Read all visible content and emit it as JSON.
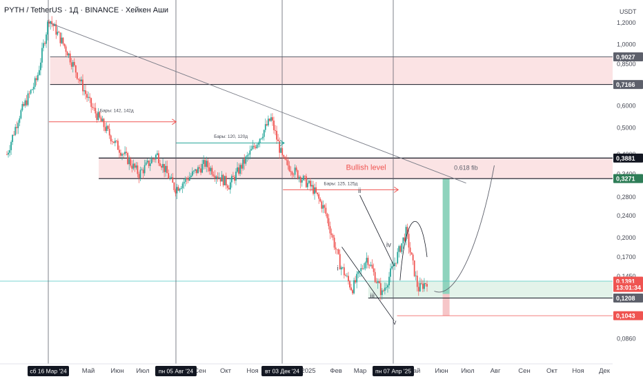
{
  "header": {
    "title": "PYTH / TetherUS · 1Д · BINANCE · Хейкен Аши"
  },
  "colors": {
    "up": "#26a69a",
    "down": "#ef5350",
    "zone_fill": "#fbe3e4",
    "green_zone": "#e3f3ea",
    "text": "#131722",
    "axis_text": "#434651",
    "vline": "#5d606b",
    "trend": "#787b86"
  },
  "chart_data": {
    "type": "candlestick",
    "title": "PYTH / TetherUS · 1Д · BINANCE · Хейкен Аши",
    "y_axis_unit": "USDT",
    "y_scale": "log",
    "ylim": [
      0.082,
      1.33
    ],
    "y_ticks": [
      "1,2000",
      "1,0000",
      "0,8500",
      "0,6000",
      "0,5000",
      "0,4000",
      "0,3400",
      "0,2800",
      "0,2400",
      "0,2000",
      "0,1700",
      "0,1450",
      "0,1208",
      "0,0860"
    ],
    "x_ticks": [
      "Май",
      "Июн",
      "Июл",
      "Сен",
      "Окт",
      "Ноя",
      "2025",
      "Фев",
      "Мар",
      "Май",
      "Июн",
      "Июл",
      "Авг",
      "Сен",
      "Окт",
      "Ноя",
      "Дек"
    ],
    "x_highlight_labels": [
      "сб 16 Мар '24",
      "пн 05 Авг '24",
      "вт 03 Дек '24",
      "пн 07 Апр '25"
    ],
    "price_labels": [
      {
        "text": "0,9027",
        "color": "#5d606b"
      },
      {
        "text": "0,7166",
        "color": "#5d606b"
      },
      {
        "text": "0,3881",
        "color": "#131722"
      },
      {
        "text": "0,3271",
        "color": "#2e7d57"
      },
      {
        "text": "0,1391",
        "color": "#ef5350"
      },
      {
        "text": "13:01:34",
        "color": "#ef5350"
      },
      {
        "text": "0,1208",
        "color": "#5d606b"
      },
      {
        "text": "0,1043",
        "color": "#ef5350"
      }
    ],
    "levels": {
      "resistance_zone": [
        0.7166,
        0.9027
      ],
      "bullish_zone": [
        0.3271,
        0.3881
      ],
      "support_zone": [
        0.1208,
        0.1391
      ],
      "low": 0.1043
    },
    "annotations": [
      {
        "text": "Бары: 142, 142д"
      },
      {
        "text": "Бары: 120, 120д"
      },
      {
        "text": "Бары: 125, 125д"
      },
      {
        "text": "Bullish level"
      },
      {
        "text": "0.618 fib"
      },
      {
        "text": "i"
      },
      {
        "text": "ii"
      },
      {
        "text": "iii"
      },
      {
        "text": "iv"
      },
      {
        "text": "v"
      }
    ],
    "series_keypoints": [
      [
        0.0,
        0.4
      ],
      [
        0.02,
        0.55
      ],
      [
        0.05,
        0.75
      ],
      [
        0.07,
        1.25
      ],
      [
        0.1,
        0.95
      ],
      [
        0.14,
        0.6
      ],
      [
        0.18,
        0.44
      ],
      [
        0.22,
        0.34
      ],
      [
        0.25,
        0.4
      ],
      [
        0.28,
        0.3
      ],
      [
        0.33,
        0.37
      ],
      [
        0.37,
        0.31
      ],
      [
        0.41,
        0.42
      ],
      [
        0.44,
        0.54
      ],
      [
        0.46,
        0.38
      ],
      [
        0.49,
        0.33
      ],
      [
        0.51,
        0.3
      ],
      [
        0.53,
        0.25
      ],
      [
        0.555,
        0.16
      ],
      [
        0.575,
        0.13
      ],
      [
        0.6,
        0.17
      ],
      [
        0.625,
        0.125
      ],
      [
        0.645,
        0.16
      ],
      [
        0.665,
        0.21
      ],
      [
        0.685,
        0.13
      ],
      [
        0.7,
        0.139
      ]
    ],
    "grid": false
  }
}
